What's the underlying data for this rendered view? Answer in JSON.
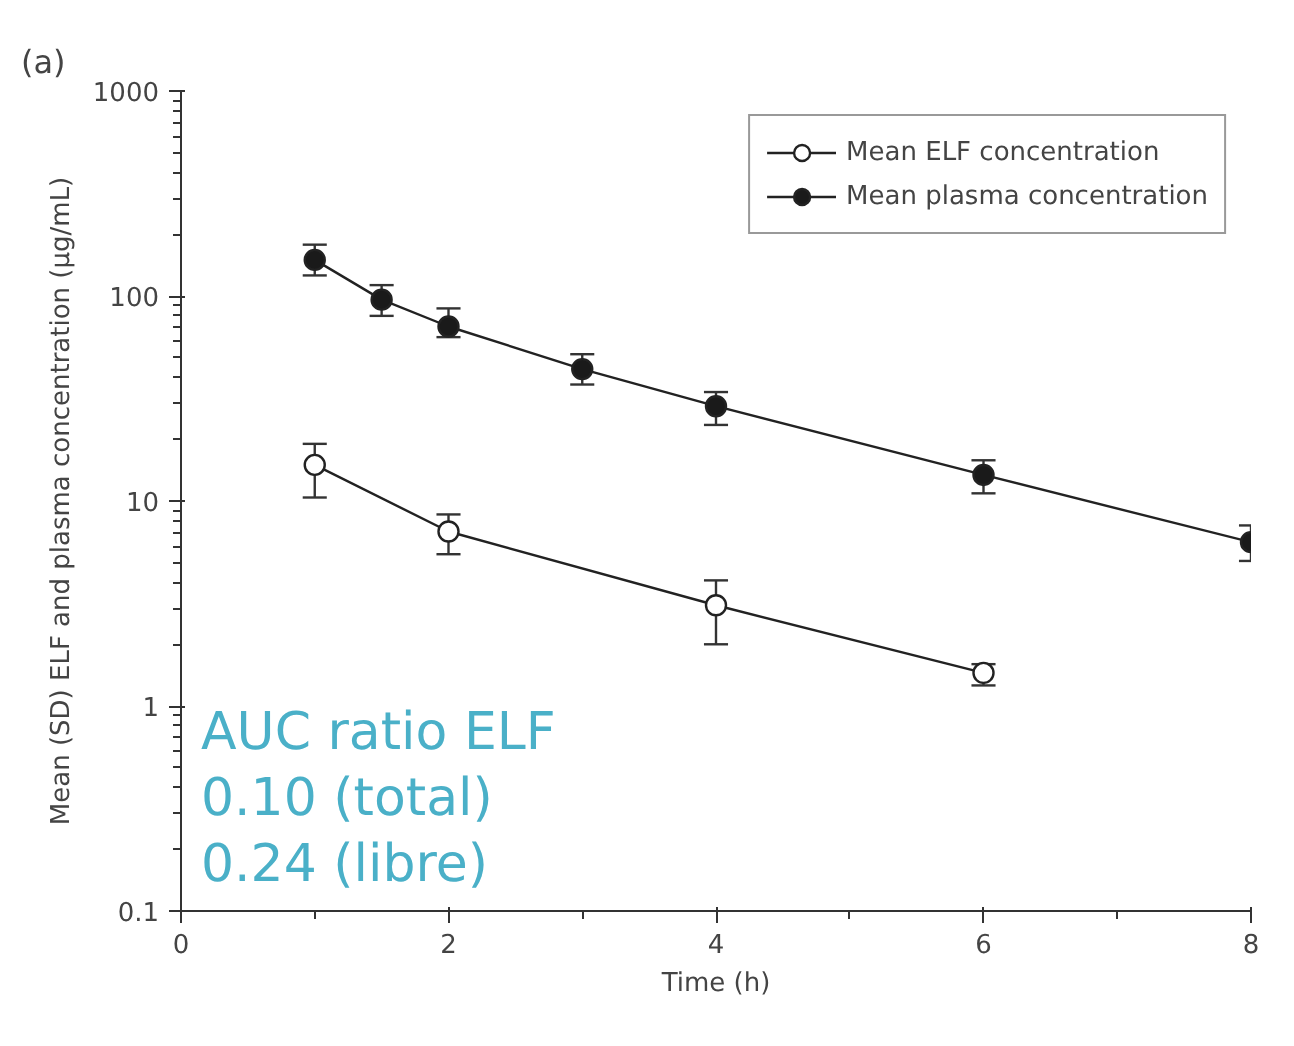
{
  "chart_data": {
    "type": "line",
    "title": "(a)",
    "xlabel": "Time (h)",
    "ylabel": "Mean (SD) ELF and plasma concentration (μg/mL)",
    "xlim": [
      0,
      8
    ],
    "xticks": [
      0,
      2,
      4,
      6,
      8
    ],
    "ylim": [
      0.1,
      1000
    ],
    "yticks": [
      0.1,
      1,
      10,
      100,
      1000
    ],
    "log": "y",
    "grid": false,
    "legend": "top right",
    "marker": "circle",
    "line_style": "solid",
    "series": [
      {
        "name": "Mean ELF concentration",
        "color": "#ffffff",
        "x": [
          1,
          2,
          4,
          6
        ],
        "values": [
          15,
          7.1,
          3.1,
          1.45
        ],
        "errors": [
          [
            10.4,
            19
          ],
          [
            5.5,
            8.6
          ],
          [
            2.0,
            4.1
          ],
          [
            1.26,
            1.6
          ]
        ]
      },
      {
        "name": "Mean plasma concentration",
        "color": "#1a1a1a",
        "x": [
          1,
          1.5,
          2,
          3,
          4,
          6,
          8
        ],
        "values": [
          150,
          96,
          71,
          44,
          29,
          13.4,
          6.3
        ],
        "errors": [
          [
            126,
            178
          ],
          [
            80,
            113
          ],
          [
            63,
            87
          ],
          [
            37,
            52
          ],
          [
            23.5,
            34
          ],
          [
            10.9,
            15.8
          ],
          [
            5.1,
            7.6
          ]
        ]
      }
    ],
    "annotations": [
      "AUC ratio ELF",
      "0.10 (total)",
      "0.24 (libre)"
    ]
  }
}
